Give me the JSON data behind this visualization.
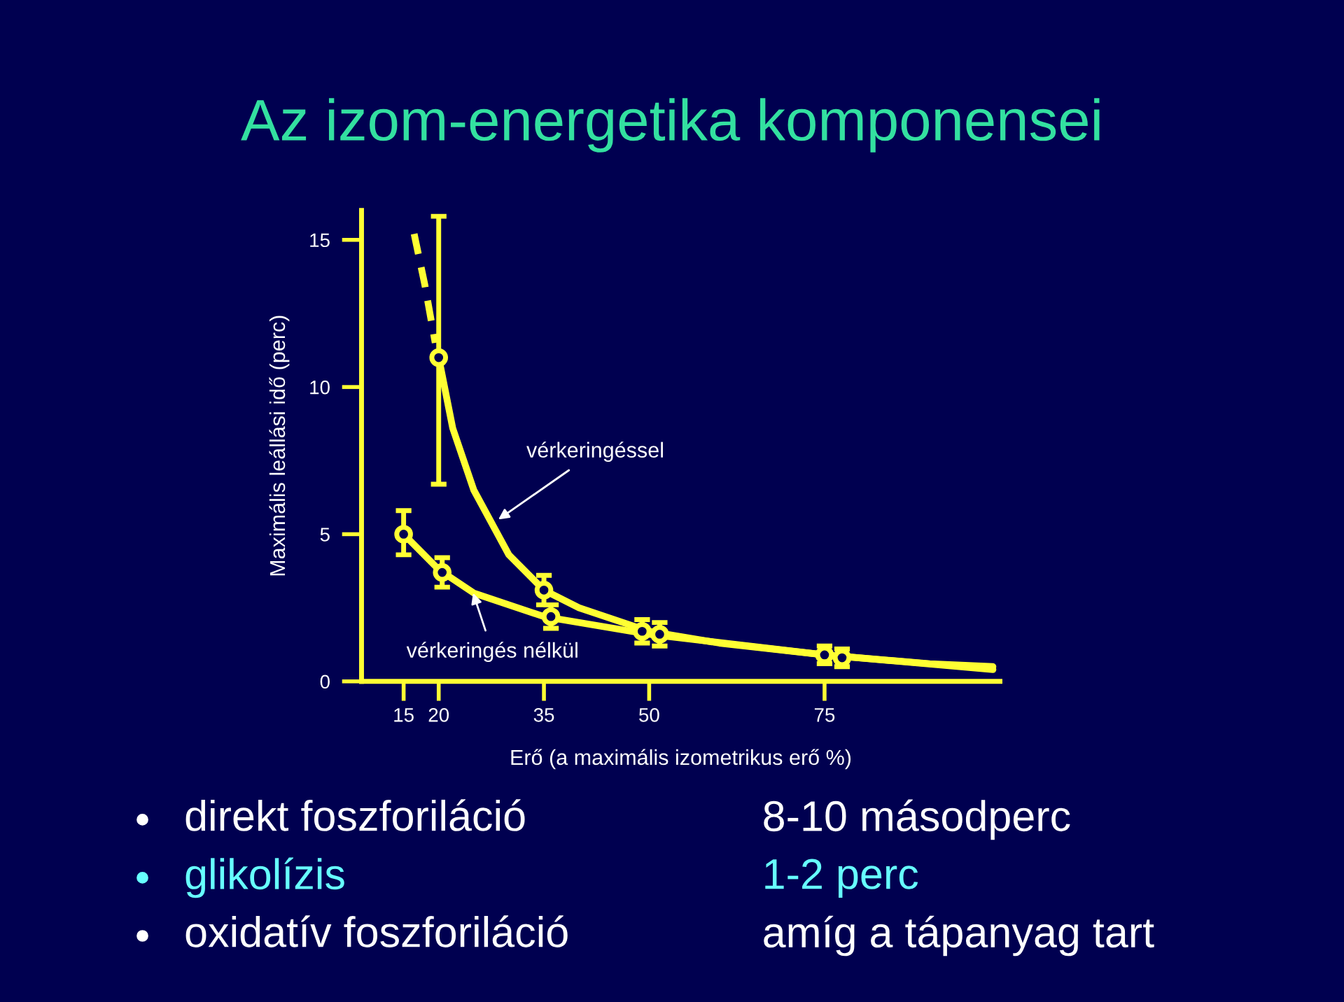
{
  "chart_data": [
    {
      "type": "line",
      "title": "Az izom-energetika komponensei",
      "xlabel": "Erő (a maximális izometrikus erő %)",
      "ylabel": "Maximális leállási idő (perc)",
      "xlim": [
        9,
        100
      ],
      "ylim": [
        0,
        16
      ],
      "xticks": [
        15,
        20,
        35,
        50,
        75
      ],
      "yticks": [
        0,
        5,
        10,
        15
      ],
      "grid": false,
      "legend": false,
      "series": [
        {
          "type": "line",
          "color": "#ffff33",
          "line_style": "solid",
          "marker": "none",
          "x": [
            20,
            22,
            25,
            30,
            35,
            40,
            50,
            60,
            75,
            90,
            99
          ],
          "values": [
            11,
            8.6,
            6.5,
            4.3,
            3.1,
            2.5,
            1.7,
            1.3,
            0.9,
            0.6,
            0.5
          ]
        },
        {
          "type": "line",
          "color": "#ffff33",
          "line_style": "dashed",
          "marker": "none",
          "x": [
            16.5,
            18,
            19.5
          ],
          "values": [
            15.2,
            13.5,
            11.5
          ]
        },
        {
          "type": "line",
          "color": "#ffff33",
          "line_style": "solid",
          "marker": "none",
          "x": [
            15,
            20,
            25,
            35,
            50,
            75,
            99
          ],
          "values": [
            5,
            3.8,
            3.0,
            2.2,
            1.6,
            0.9,
            0.4
          ]
        },
        {
          "type": "scatter",
          "color": "#ffff33",
          "marker": "circle",
          "x": [
            20,
            35,
            51.5,
            77.5
          ],
          "values": [
            11,
            3.1,
            1.6,
            0.8
          ],
          "errors": [
            [
              6.7,
              15.8
            ],
            [
              2.6,
              3.6
            ],
            [
              1.2,
              2.0
            ],
            [
              0.5,
              1.1
            ]
          ]
        },
        {
          "type": "scatter",
          "color": "#ffff33",
          "marker": "circle",
          "x": [
            15,
            20.5,
            36,
            49,
            75
          ],
          "values": [
            5.0,
            3.7,
            2.2,
            1.7,
            0.9
          ],
          "errors": [
            [
              4.3,
              5.8
            ],
            [
              3.2,
              4.2
            ],
            [
              1.8,
              2.6
            ],
            [
              1.3,
              2.1
            ],
            [
              0.6,
              1.2
            ]
          ]
        }
      ],
      "annotations": [
        {
          "text": "vérkeringéssel",
          "x": 28.5,
          "y": 5.5
        },
        {
          "text": "vérkeringés nélkül",
          "x": 24.9,
          "y": 3.0
        }
      ]
    },
    {
      "type": "other",
      "annotations": [
        "direkt foszforiláció",
        "8-10 másodperc",
        "glikolízis",
        "1-2 perc",
        "oxidatív foszforiláció",
        "amíg a tápanyag tart"
      ]
    }
  ]
}
